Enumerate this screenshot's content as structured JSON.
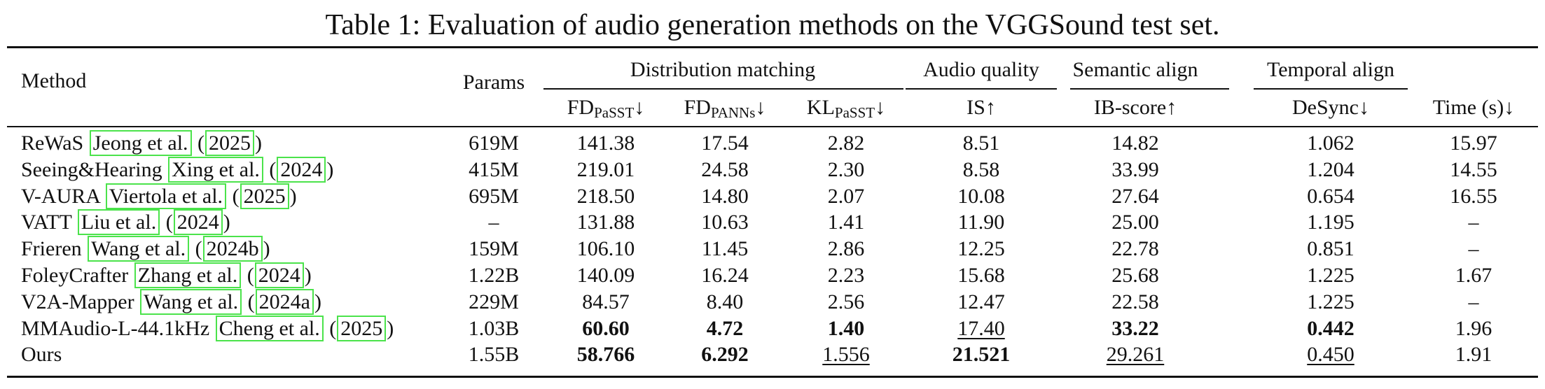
{
  "caption": "Table 1: Evaluation of audio generation methods on the VGGSound test set.",
  "header": {
    "method": "Method",
    "params": "Params",
    "groups": {
      "distribution": "Distribution matching",
      "audio_quality": "Audio quality",
      "semantic": "Semantic align",
      "temporal": "Temporal align"
    },
    "metrics": {
      "fd_passt": {
        "base": "FD",
        "sub": "PaSST",
        "arrow": "↓"
      },
      "fd_panns": {
        "base": "FD",
        "sub": "PANNs",
        "arrow": "↓"
      },
      "kl_passt": {
        "base": "KL",
        "sub": "PaSST",
        "arrow": "↓"
      },
      "is": {
        "base": "IS",
        "arrow": "↑"
      },
      "ib": {
        "base": "IB-score",
        "arrow": "↑"
      },
      "desync": {
        "base": "DeSync",
        "arrow": "↓"
      },
      "time": {
        "base": "Time (s)",
        "arrow": "↓"
      }
    }
  },
  "rows": [
    {
      "method": "ReWaS",
      "cite": "Jeong et al.",
      "year": "2025",
      "params": "619M",
      "fd_passt": "141.38",
      "fd_panns": "17.54",
      "kl_passt": "2.82",
      "is": "8.51",
      "ib": "14.82",
      "desync": "1.062",
      "time": "15.97"
    },
    {
      "method": "Seeing&Hearing",
      "cite": "Xing et al.",
      "year": "2024",
      "params": "415M",
      "fd_passt": "219.01",
      "fd_panns": "24.58",
      "kl_passt": "2.30",
      "is": "8.58",
      "ib": "33.99",
      "desync": "1.204",
      "time": "14.55"
    },
    {
      "method": "V-AURA",
      "cite": "Viertola et al.",
      "year": "2025",
      "params": "695M",
      "fd_passt": "218.50",
      "fd_panns": "14.80",
      "kl_passt": "2.07",
      "is": "10.08",
      "ib": "27.64",
      "desync": "0.654",
      "time": "16.55"
    },
    {
      "method": "VATT",
      "cite": "Liu et al.",
      "year": "2024",
      "params": "–",
      "fd_passt": "131.88",
      "fd_panns": "10.63",
      "kl_passt": "1.41",
      "is": "11.90",
      "ib": "25.00",
      "desync": "1.195",
      "time": "–"
    },
    {
      "method": "Frieren",
      "cite": "Wang et al.",
      "year": "2024b",
      "params": "159M",
      "fd_passt": "106.10",
      "fd_panns": "11.45",
      "kl_passt": "2.86",
      "is": "12.25",
      "ib": "22.78",
      "desync": "0.851",
      "time": "–"
    },
    {
      "method": "FoleyCrafter",
      "cite": "Zhang et al.",
      "year": "2024",
      "params": "1.22B",
      "fd_passt": "140.09",
      "fd_panns": "16.24",
      "kl_passt": "2.23",
      "is": "15.68",
      "ib": "25.68",
      "desync": "1.225",
      "time": "1.67"
    },
    {
      "method": "V2A-Mapper",
      "cite": "Wang et al.",
      "year": "2024a",
      "params": "229M",
      "fd_passt": "84.57",
      "fd_panns": "8.40",
      "kl_passt": "2.56",
      "is": "12.47",
      "ib": "22.58",
      "desync": "1.225",
      "time": "–"
    },
    {
      "method": "MMAudio-L-44.1kHz",
      "cite": "Cheng et al.",
      "year": "2025",
      "params": "1.03B",
      "fd_passt": "60.60",
      "fd_panns": "4.72",
      "kl_passt": "1.40",
      "is": "17.40",
      "ib": "33.22",
      "desync": "0.442",
      "time": "1.96"
    },
    {
      "method": "Ours",
      "cite": "",
      "year": "",
      "params": "1.55B",
      "fd_passt": "58.766",
      "fd_panns": "6.292",
      "kl_passt": "1.556",
      "is": "21.521",
      "ib": "29.261",
      "desync": "0.450",
      "time": "1.91"
    }
  ]
}
